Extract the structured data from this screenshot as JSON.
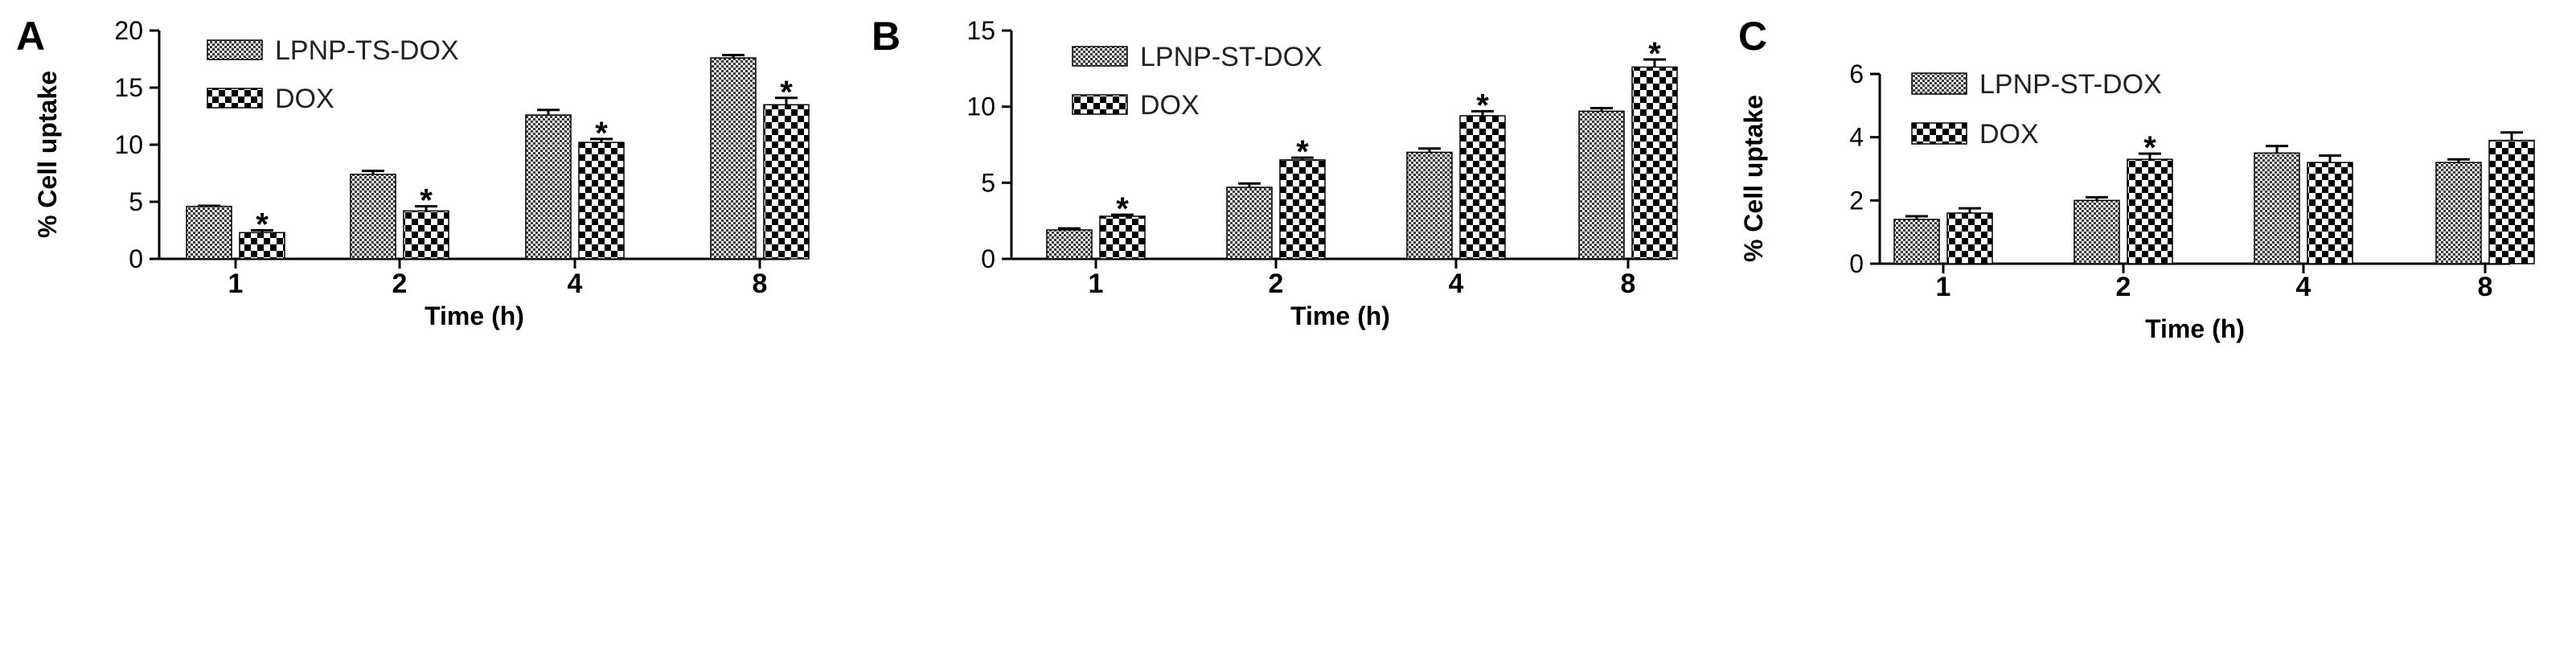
{
  "colors": {
    "ink": "#000000",
    "bar_fill_dark": "#3a3a3a",
    "bar_fill_light": "#ffffff"
  },
  "chart_data": [
    {
      "panel": "A",
      "type": "bar",
      "categories": [
        "1",
        "2",
        "4",
        "8"
      ],
      "xlabel": "Time (h)",
      "ylabel": "% Cell uptake",
      "ylim": [
        0,
        20
      ],
      "yticks": [
        "0",
        "5",
        "10",
        "15",
        "20"
      ],
      "legend_position": "top-left",
      "series": [
        {
          "name": "LPNP-TS-DOX",
          "values": [
            4.6,
            7.4,
            12.6,
            17.6
          ],
          "errors": [
            0.05,
            0.3,
            0.45,
            0.25
          ],
          "sig": [
            "",
            "",
            "",
            ""
          ]
        },
        {
          "name": "DOX",
          "values": [
            2.3,
            4.2,
            10.2,
            13.5
          ],
          "errors": [
            0.2,
            0.4,
            0.3,
            0.6
          ],
          "sig": [
            "*",
            "*",
            "*",
            "*"
          ]
        }
      ]
    },
    {
      "panel": "B",
      "type": "bar",
      "categories": [
        "1",
        "2",
        "4",
        "8"
      ],
      "xlabel": "Time (h)",
      "ylabel": "",
      "ylim": [
        0,
        15
      ],
      "yticks": [
        "0",
        "5",
        "10",
        "15"
      ],
      "legend_position": "top-left",
      "series": [
        {
          "name": "LPNP-ST-DOX",
          "values": [
            1.9,
            4.7,
            7.0,
            9.7
          ],
          "errors": [
            0.1,
            0.25,
            0.25,
            0.2
          ],
          "sig": [
            "",
            "",
            "",
            ""
          ]
        },
        {
          "name": "DOX",
          "values": [
            2.8,
            6.5,
            9.4,
            12.6
          ],
          "errors": [
            0.1,
            0.15,
            0.3,
            0.5
          ],
          "sig": [
            "*",
            "*",
            "*",
            "*"
          ]
        }
      ]
    },
    {
      "panel": "C",
      "type": "bar",
      "categories": [
        "1",
        "2",
        "4",
        "8"
      ],
      "xlabel": "Time (h)",
      "ylabel": "% Cell uptake",
      "ylim": [
        0,
        6
      ],
      "yticks": [
        "0",
        "2",
        "4",
        "6"
      ],
      "legend_position": "top-left",
      "series": [
        {
          "name": "LPNP-ST-DOX",
          "values": [
            1.4,
            2.0,
            3.5,
            3.2
          ],
          "errors": [
            0.1,
            0.1,
            0.22,
            0.1
          ],
          "sig": [
            "",
            "",
            "",
            ""
          ]
        },
        {
          "name": "DOX",
          "values": [
            1.6,
            3.3,
            3.2,
            3.9
          ],
          "errors": [
            0.15,
            0.18,
            0.22,
            0.25
          ],
          "sig": [
            "",
            "*",
            "",
            ""
          ]
        }
      ]
    }
  ]
}
